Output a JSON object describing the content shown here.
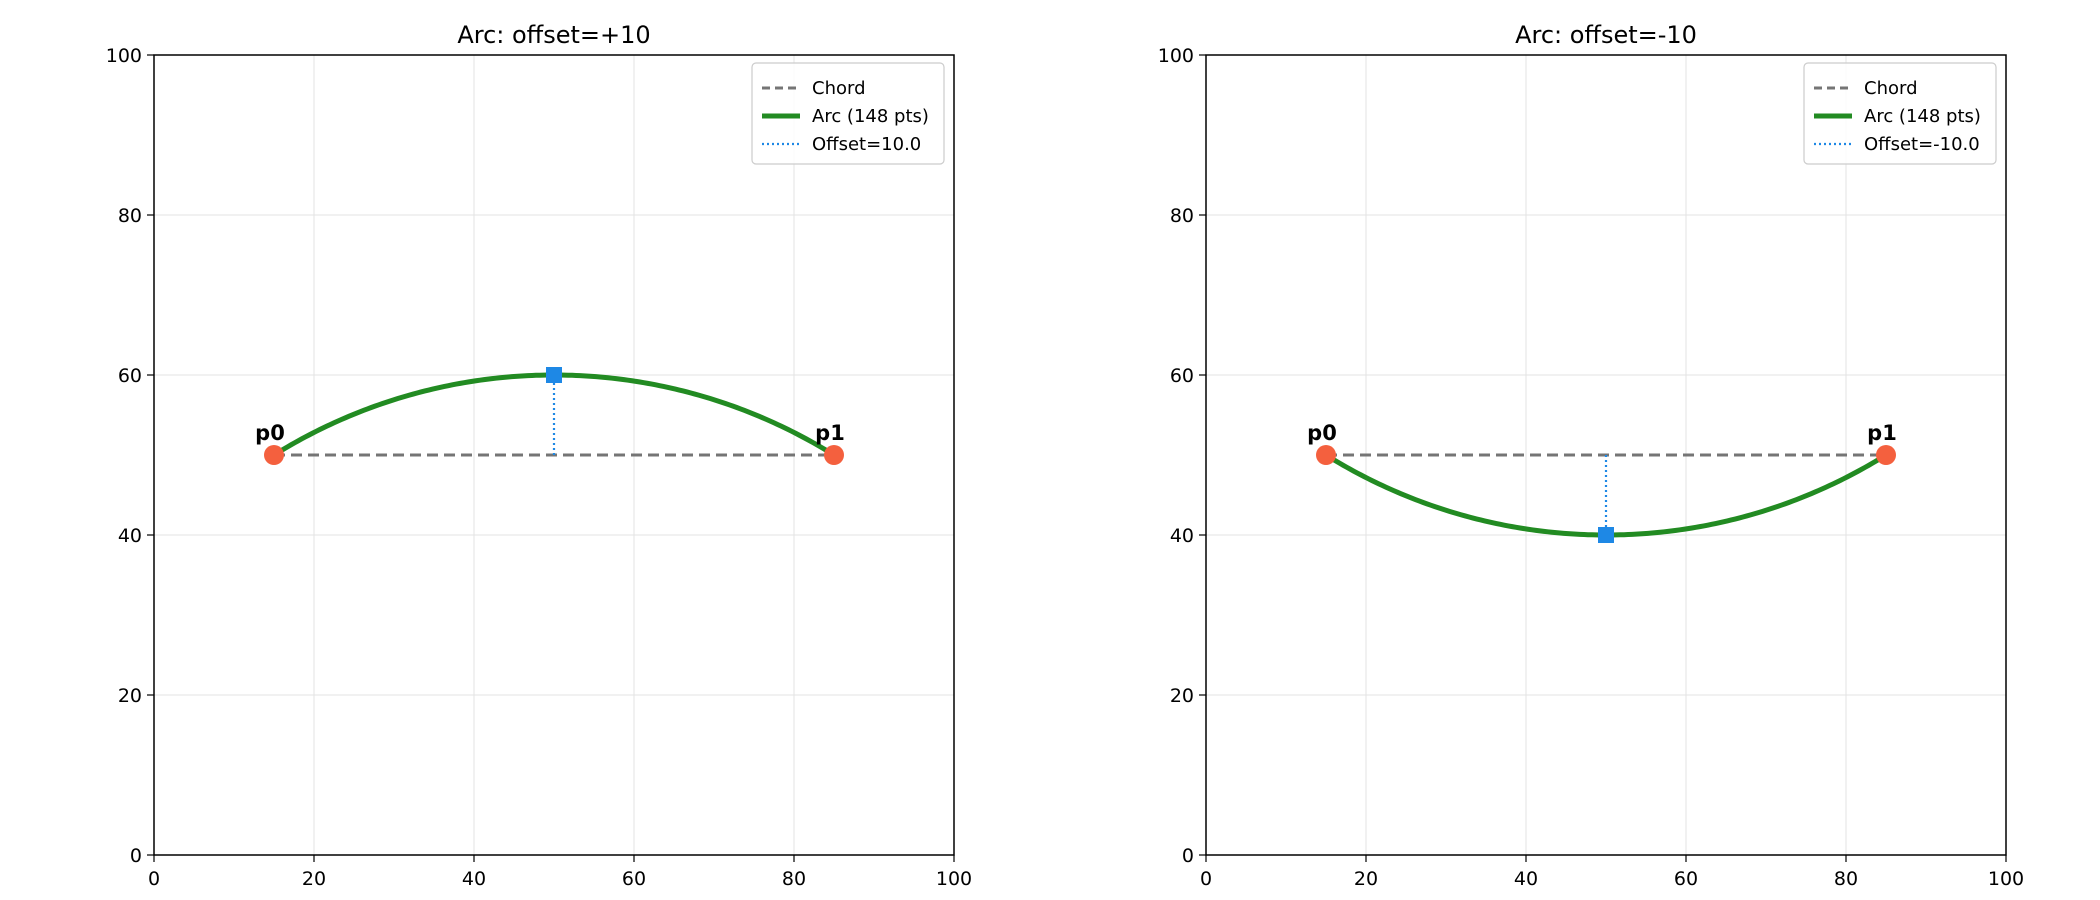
{
  "chart_data": [
    {
      "type": "line",
      "title": "Arc: offset=+10",
      "xlabel": "",
      "ylabel": "",
      "xlim": [
        0,
        100
      ],
      "ylim": [
        0,
        100
      ],
      "xticks": [
        0,
        20,
        40,
        60,
        80,
        100
      ],
      "yticks": [
        0,
        20,
        40,
        60,
        80,
        100
      ],
      "grid": true,
      "legend_position": "top-right",
      "p0": {
        "label": "p0",
        "x": 15,
        "y": 50
      },
      "p1": {
        "label": "p1",
        "x": 85,
        "y": 50
      },
      "apex": {
        "x": 50,
        "y": 60
      },
      "offset_value": 10,
      "series": [
        {
          "name": "Chord",
          "style": "dashed",
          "color": "#757575",
          "points": [
            [
              15,
              50
            ],
            [
              85,
              50
            ]
          ]
        },
        {
          "name": "Arc (148 pts)",
          "style": "solid",
          "color": "#228B22",
          "point_count": 148
        },
        {
          "name": "Offset=10.0",
          "style": "dotted",
          "color": "#1E88E5",
          "points": [
            [
              50,
              50
            ],
            [
              50,
              60
            ]
          ]
        }
      ]
    },
    {
      "type": "line",
      "title": "Arc: offset=-10",
      "xlabel": "",
      "ylabel": "",
      "xlim": [
        0,
        100
      ],
      "ylim": [
        0,
        100
      ],
      "xticks": [
        0,
        20,
        40,
        60,
        80,
        100
      ],
      "yticks": [
        0,
        20,
        40,
        60,
        80,
        100
      ],
      "grid": true,
      "legend_position": "top-right",
      "p0": {
        "label": "p0",
        "x": 15,
        "y": 50
      },
      "p1": {
        "label": "p1",
        "x": 85,
        "y": 50
      },
      "apex": {
        "x": 50,
        "y": 40
      },
      "offset_value": -10,
      "series": [
        {
          "name": "Chord",
          "style": "dashed",
          "color": "#757575",
          "points": [
            [
              15,
              50
            ],
            [
              85,
              50
            ]
          ]
        },
        {
          "name": "Arc (148 pts)",
          "style": "solid",
          "color": "#228B22",
          "point_count": 148
        },
        {
          "name": "Offset=-10.0",
          "style": "dotted",
          "color": "#1E88E5",
          "points": [
            [
              50,
              50
            ],
            [
              50,
              40
            ]
          ]
        }
      ]
    }
  ],
  "colors": {
    "endpoint": "#F4603E",
    "apex_marker": "#1E88E5",
    "grid": "#e3e3e3"
  }
}
